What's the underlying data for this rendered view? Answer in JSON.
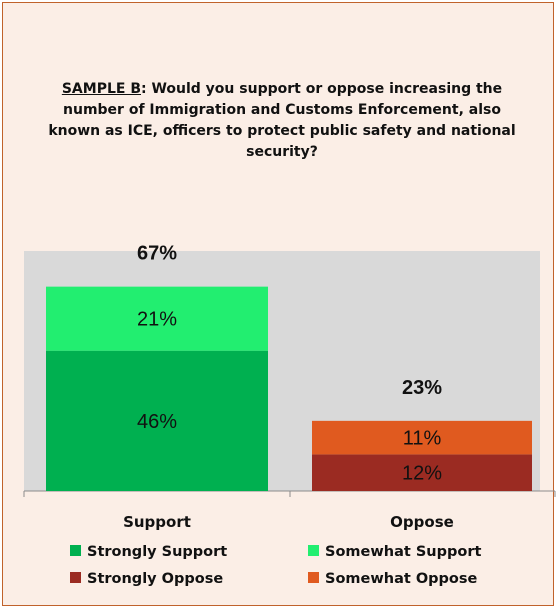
{
  "chart_data": {
    "type": "bar",
    "stacked": true,
    "title_prefix": "SAMPLE B",
    "title": ": Would you support or oppose increasing the number of Immigration and Customs Enforcement, also known as ICE, officers to protect public safety and national security?",
    "categories": [
      "Support",
      "Oppose"
    ],
    "totals": [
      "67%",
      "23%"
    ],
    "series": [
      {
        "name": "Strongly Support",
        "color": "#00b050",
        "values": [
          46,
          0
        ],
        "labels": [
          "46%",
          ""
        ]
      },
      {
        "name": "Somewhat Support",
        "color": "#22ee70",
        "values": [
          21,
          0
        ],
        "labels": [
          "21%",
          ""
        ]
      },
      {
        "name": "Strongly Oppose",
        "color": "#9b2b22",
        "values": [
          0,
          12
        ],
        "labels": [
          "",
          "12%"
        ]
      },
      {
        "name": "Somewhat Oppose",
        "color": "#e05a1f",
        "values": [
          0,
          11
        ],
        "labels": [
          "",
          "11%"
        ]
      }
    ],
    "ylim": [
      0,
      100
    ],
    "legend_placement": "bottom",
    "grid": false,
    "colors": {
      "frame_border": "#c0622b",
      "frame_background": "#fbeee6",
      "plot_background": "#d9d9d9"
    }
  }
}
